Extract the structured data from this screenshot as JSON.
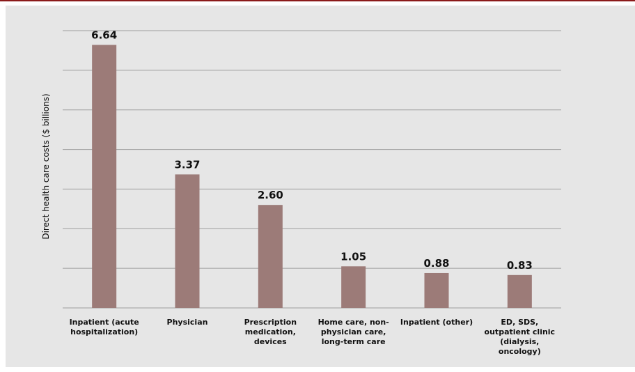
{
  "chart_data": {
    "type": "bar",
    "title": "",
    "xlabel": "",
    "ylabel": "Direct health care costs ($ billions)",
    "categories": [
      [
        "Inpatient (acute",
        "hospitalization)"
      ],
      [
        "Physician"
      ],
      [
        "Prescription",
        "medication,",
        "devices"
      ],
      [
        "Home care, non-",
        "physician care,",
        "long-term care"
      ],
      [
        "Inpatient (other)"
      ],
      [
        "ED, SDS,",
        "outpatient clinic",
        "(dialysis,",
        "oncology)"
      ]
    ],
    "values": [
      6.64,
      3.37,
      2.6,
      1.05,
      0.88,
      0.83
    ],
    "value_labels": [
      "6.64",
      "3.37",
      "2.60",
      "1.05",
      "0.88",
      "0.83"
    ],
    "ylim": [
      0,
      7
    ],
    "grid": true,
    "bar_color": "#9c7b78",
    "grid_color": "#9e9e9e",
    "accent_color": "#8b1a1a"
  }
}
